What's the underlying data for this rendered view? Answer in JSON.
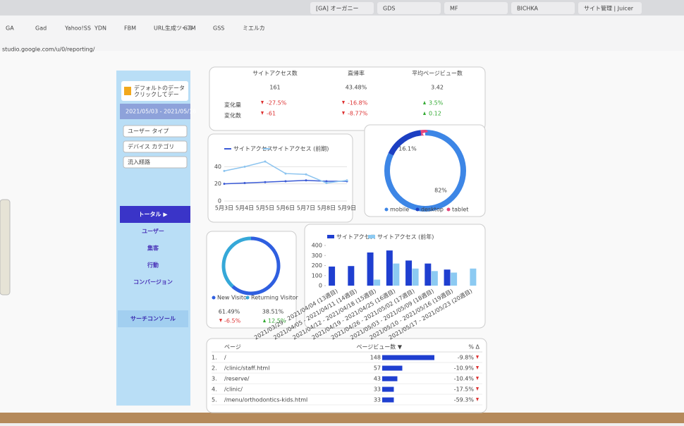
{
  "browser": {
    "tabs": [
      "[GA] オーガニー",
      "GDS",
      "MF",
      "BICHKA",
      "サイト管理 | Juicer"
    ],
    "url": "studio.google.com/u/0/reporting/",
    "bookmarks": [
      "GA",
      "Gad",
      "Yahoo!SS",
      "YDN",
      "FBM",
      "URL生成ツール",
      "GTM",
      "GSS",
      "ミエルカ"
    ]
  },
  "sidebar": {
    "data_source": [
      "デフォルトのデータ",
      "クリックしてデー"
    ],
    "date_range": "2021/05/03 - 2021/05/16",
    "filters": [
      "ユーザー タイプ",
      "デバイス カテゴリ",
      "流入経路"
    ],
    "nav": [
      "トータル ▶",
      "ユーザー",
      "集客",
      "行動",
      "コンバージョン"
    ],
    "search_console": "サーチコンソール"
  },
  "scorecards": {
    "row_labels": [
      "変化量",
      "変化数"
    ],
    "items": [
      {
        "label": "サイトアクセス数",
        "value": "161",
        "change": "-27.5%",
        "delta": "-61"
      },
      {
        "label": "直帰率",
        "value": "43.48%",
        "change": "-16.8%",
        "delta": "-8.77%"
      },
      {
        "label": "平均ページビュー数",
        "value": "3.42",
        "change": "3.5%",
        "delta": "0.12"
      }
    ]
  },
  "line_chart": {
    "type": "line",
    "x": [
      "5月3日",
      "5月4日",
      "5月5日",
      "5月6日",
      "5月7日",
      "5月8日",
      "5月9日"
    ],
    "series": [
      {
        "name": "サイトアクセス",
        "color": "#3b5bd6",
        "values": [
          20,
          21,
          22,
          23,
          24,
          23,
          23
        ]
      },
      {
        "name": "サイトアクセス (前期)",
        "color": "#8cc4ef",
        "values": [
          35,
          40,
          46,
          32,
          31,
          21,
          24
        ]
      }
    ],
    "ylim": [
      0,
      60
    ],
    "yticks": [
      0,
      20,
      40
    ],
    "grid": true
  },
  "device_donut": {
    "type": "pie",
    "categories": [
      "mobile",
      "desktop",
      "tablet"
    ],
    "values": [
      82,
      16.1,
      1.9
    ],
    "value_labels": [
      "82%",
      "16.1%",
      null
    ],
    "colors": [
      "#3d86e6",
      "#1c3fc2",
      "#e5457c"
    ]
  },
  "visitor_donut": {
    "type": "pie",
    "categories": [
      "New Visitor",
      "Returning Visitor"
    ],
    "values": [
      61.49,
      38.51
    ],
    "value_labels": [
      "61.49%",
      "38.51%"
    ],
    "changes": [
      "-6.5%",
      "12.5%"
    ],
    "colors": [
      "#2f5fe0",
      "#35a8d8"
    ]
  },
  "bar_chart": {
    "type": "bar",
    "categories": [
      "2021/03/29 - 2021/04/04 (13週目)",
      "2021/04/05 - 2021/04/11 (14週目)",
      "2021/04/12 - 2021/04/18 (15週目)",
      "2021/04/19 - 2021/04/25 (16週目)",
      "2021/04/26 - 2021/05/02 (17週目)",
      "2021/05/03 - 2021/05/09 (18週目)",
      "2021/05/10 - 2021/05/16 (19週目)",
      "2021/05/17 - 2021/05/23 (20週目)"
    ],
    "series": [
      {
        "name": "サイトアクセス",
        "color": "#1f3fd0",
        "values": [
          190,
          195,
          330,
          350,
          250,
          220,
          160,
          null
        ]
      },
      {
        "name": "サイトアクセス (前年)",
        "color": "#8ccaf2",
        "values": [
          null,
          null,
          60,
          220,
          170,
          145,
          130,
          170
        ]
      }
    ],
    "ylim": [
      0,
      400
    ],
    "yticks": [
      0,
      100,
      200,
      300,
      400
    ]
  },
  "table": {
    "columns": [
      "ページ",
      "ページビュー数 ▼",
      "% Δ"
    ],
    "rows": [
      [
        "1.",
        "/",
        148,
        "-9.8%"
      ],
      [
        "2.",
        "/clinic/staff.html",
        57,
        "-10.9%"
      ],
      [
        "3.",
        "/reserve/",
        43,
        "-10.4%"
      ],
      [
        "4.",
        "/clinic/",
        33,
        "-17.5%"
      ],
      [
        "5.",
        "/menu/orthodontics-kids.html",
        33,
        "-59.3%"
      ]
    ]
  }
}
